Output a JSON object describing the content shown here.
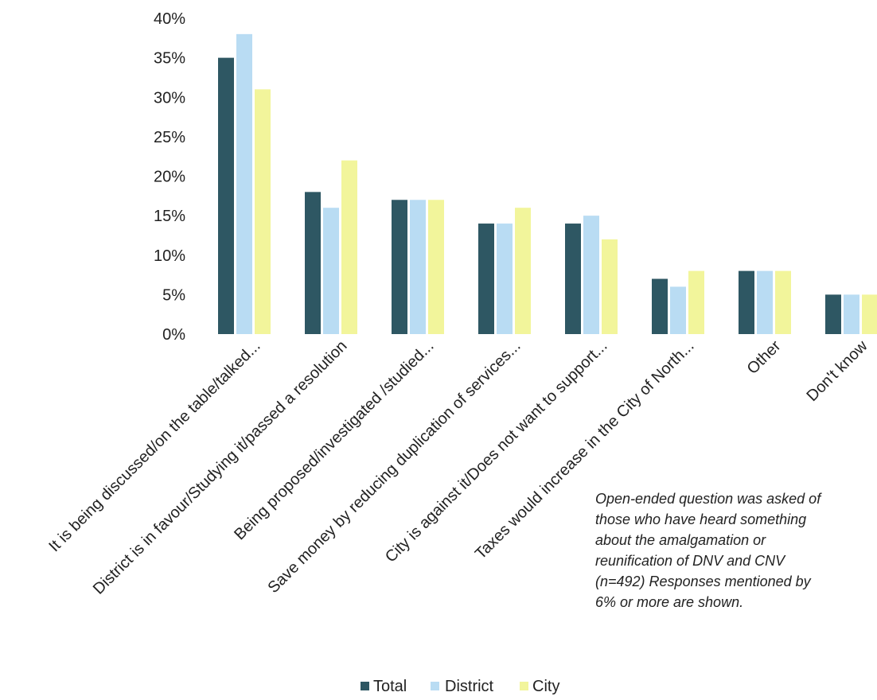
{
  "chart_data": {
    "type": "bar",
    "categories": [
      "It is being discussed/on the table/talked...",
      "District is in favour/Studying it/passed a resolution",
      "Being proposed/investigated /studied...",
      "Save money by reducing duplication of services...",
      "City is against it/Does not want to support...",
      "Taxes would increase in the City of North...",
      "Other",
      "Don't know"
    ],
    "series": [
      {
        "name": "Total",
        "color": "#2e5763",
        "values": [
          35,
          18,
          17,
          14,
          14,
          7,
          8,
          5
        ]
      },
      {
        "name": "District",
        "color": "#b9dcf3",
        "values": [
          38,
          16,
          17,
          14,
          15,
          6,
          8,
          5
        ]
      },
      {
        "name": "City",
        "color": "#f2f59b",
        "values": [
          31,
          22,
          17,
          16,
          12,
          8,
          8,
          5
        ]
      }
    ],
    "ylim": [
      0,
      40
    ],
    "yticks": [
      "0%",
      "5%",
      "10%",
      "15%",
      "20%",
      "25%",
      "30%",
      "35%",
      "40%"
    ],
    "legend_position": "bottom",
    "grid": false
  },
  "note": {
    "lines": [
      "Open-ended question was asked of",
      "those who have heard something",
      "about the amalgamation or",
      "reunification of DNV and CNV",
      "(n=492) Responses mentioned by",
      "6% or more are shown."
    ]
  }
}
